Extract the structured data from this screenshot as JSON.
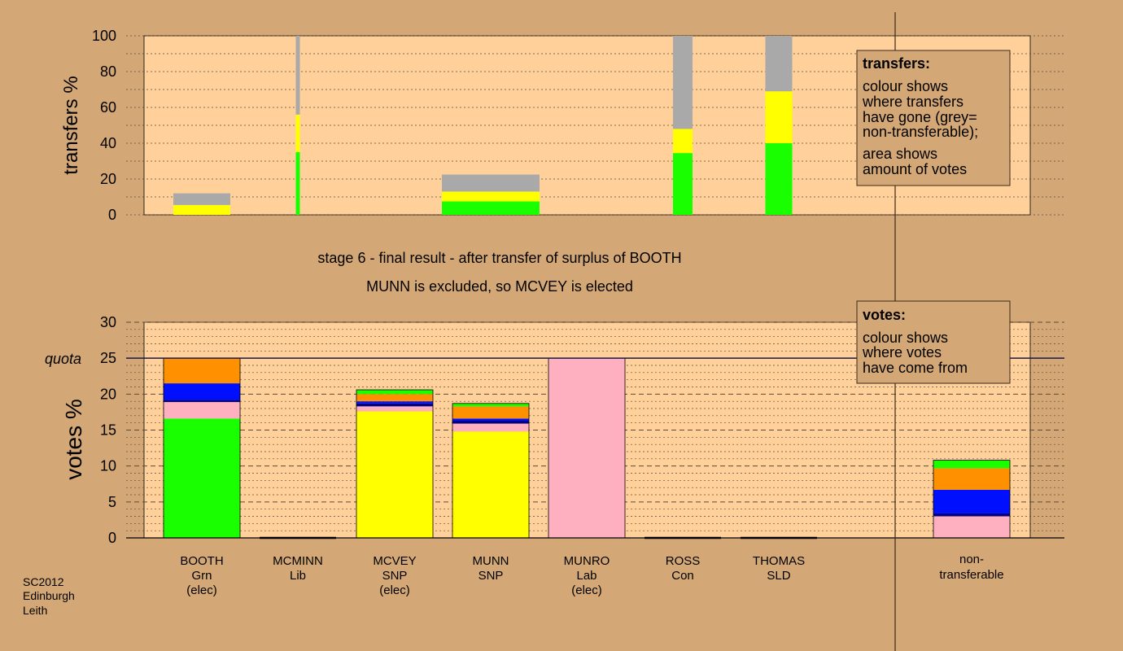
{
  "chart_data": {
    "type": "bar",
    "stage_title": "stage 6 - final result - after transfer of surplus of BOOTH",
    "stage_subtitle": "MUNN is excluded, so MCVEY is elected",
    "credit": [
      "SC2012",
      "Edinburgh",
      "Leith"
    ],
    "colors": {
      "green": "#1aff00",
      "yellow": "#ffff00",
      "grey": "#a9a9a9",
      "pink": "#ffb0c0",
      "blue": "#0010ff",
      "navy": "#000080",
      "orange": "#ff9000",
      "panel": "#ffd09a",
      "background": "#d4a876"
    },
    "candidates": [
      {
        "name": "BOOTH",
        "party": "Grn",
        "status": "(elec)"
      },
      {
        "name": "MCMINN",
        "party": "Lib",
        "status": ""
      },
      {
        "name": "MCVEY",
        "party": "SNP",
        "status": "(elec)"
      },
      {
        "name": "MUNN",
        "party": "SNP",
        "status": ""
      },
      {
        "name": "MUNRO",
        "party": "Lab",
        "status": "(elec)"
      },
      {
        "name": "ROSS",
        "party": "Con",
        "status": ""
      },
      {
        "name": "THOMAS",
        "party": "SLD",
        "status": ""
      }
    ],
    "nontransferable_label": [
      "non-",
      "transferable"
    ],
    "transfers": {
      "ylabel": "transfers %",
      "ylim": [
        0,
        100
      ],
      "ticks": [
        0,
        20,
        40,
        60,
        80,
        100
      ],
      "legend": {
        "title": "transfers:",
        "lines": [
          "colour shows",
          "where transfers",
          "have gone (grey=",
          "non-transferable);",
          "area shows",
          "amount of votes"
        ]
      },
      "bars": [
        {
          "candidate": "BOOTH",
          "segments": [
            {
              "color": "yellow",
              "value": 5.5
            },
            {
              "color": "grey",
              "value": 6.5
            }
          ]
        },
        {
          "candidate": "MCMINN",
          "segments": [
            {
              "color": "green",
              "value": 35
            },
            {
              "color": "yellow",
              "value": 21
            },
            {
              "color": "grey",
              "value": 44
            }
          ]
        },
        {
          "candidate": "MUNN",
          "segments": [
            {
              "color": "green",
              "value": 7.5
            },
            {
              "color": "yellow",
              "value": 5.5
            },
            {
              "color": "grey",
              "value": 9.5
            }
          ]
        },
        {
          "candidate": "ROSS",
          "segments": [
            {
              "color": "green",
              "value": 34.5
            },
            {
              "color": "yellow",
              "value": 13.5
            },
            {
              "color": "grey",
              "value": 52
            }
          ]
        },
        {
          "candidate": "THOMAS",
          "segments": [
            {
              "color": "green",
              "value": 40
            },
            {
              "color": "yellow",
              "value": 29
            },
            {
              "color": "grey",
              "value": 31
            }
          ]
        }
      ]
    },
    "votes": {
      "ylabel": "votes %",
      "ylim": [
        0,
        30
      ],
      "ticks": [
        0,
        5,
        10,
        15,
        20,
        25,
        30
      ],
      "quota": 25,
      "quota_label": "quota",
      "legend": {
        "title": "votes:",
        "lines": [
          "colour shows",
          "where votes",
          "have come from"
        ]
      },
      "bars": [
        {
          "candidate": "BOOTH",
          "segments": [
            {
              "color": "green",
              "value": 16.6
            },
            {
              "color": "pink",
              "value": 2.3
            },
            {
              "color": "navy",
              "value": 0.3
            },
            {
              "color": "blue",
              "value": 2.3
            },
            {
              "color": "orange",
              "value": 3.5
            }
          ]
        },
        {
          "candidate": "MCMINN",
          "segments": []
        },
        {
          "candidate": "MCVEY",
          "segments": [
            {
              "color": "yellow",
              "value": 17.6
            },
            {
              "color": "pink",
              "value": 0.7
            },
            {
              "color": "navy",
              "value": 0.4
            },
            {
              "color": "blue",
              "value": 0.3
            },
            {
              "color": "orange",
              "value": 1.0
            },
            {
              "color": "green",
              "value": 0.6
            }
          ]
        },
        {
          "candidate": "MUNN",
          "segments": [
            {
              "color": "yellow",
              "value": 14.8
            },
            {
              "color": "pink",
              "value": 1.1
            },
            {
              "color": "navy",
              "value": 0.4
            },
            {
              "color": "blue",
              "value": 0.3
            },
            {
              "color": "orange",
              "value": 1.7
            },
            {
              "color": "green",
              "value": 0.4
            }
          ]
        },
        {
          "candidate": "MUNRO",
          "segments": [
            {
              "color": "pink",
              "value": 25
            }
          ]
        },
        {
          "candidate": "ROSS",
          "segments": []
        },
        {
          "candidate": "THOMAS",
          "segments": []
        },
        {
          "candidate": "non-transferable",
          "segments": [
            {
              "color": "pink",
              "value": 3.0
            },
            {
              "color": "navy",
              "value": 0.4
            },
            {
              "color": "blue",
              "value": 3.3
            },
            {
              "color": "orange",
              "value": 3.0
            },
            {
              "color": "green",
              "value": 1.1
            }
          ]
        }
      ]
    }
  }
}
